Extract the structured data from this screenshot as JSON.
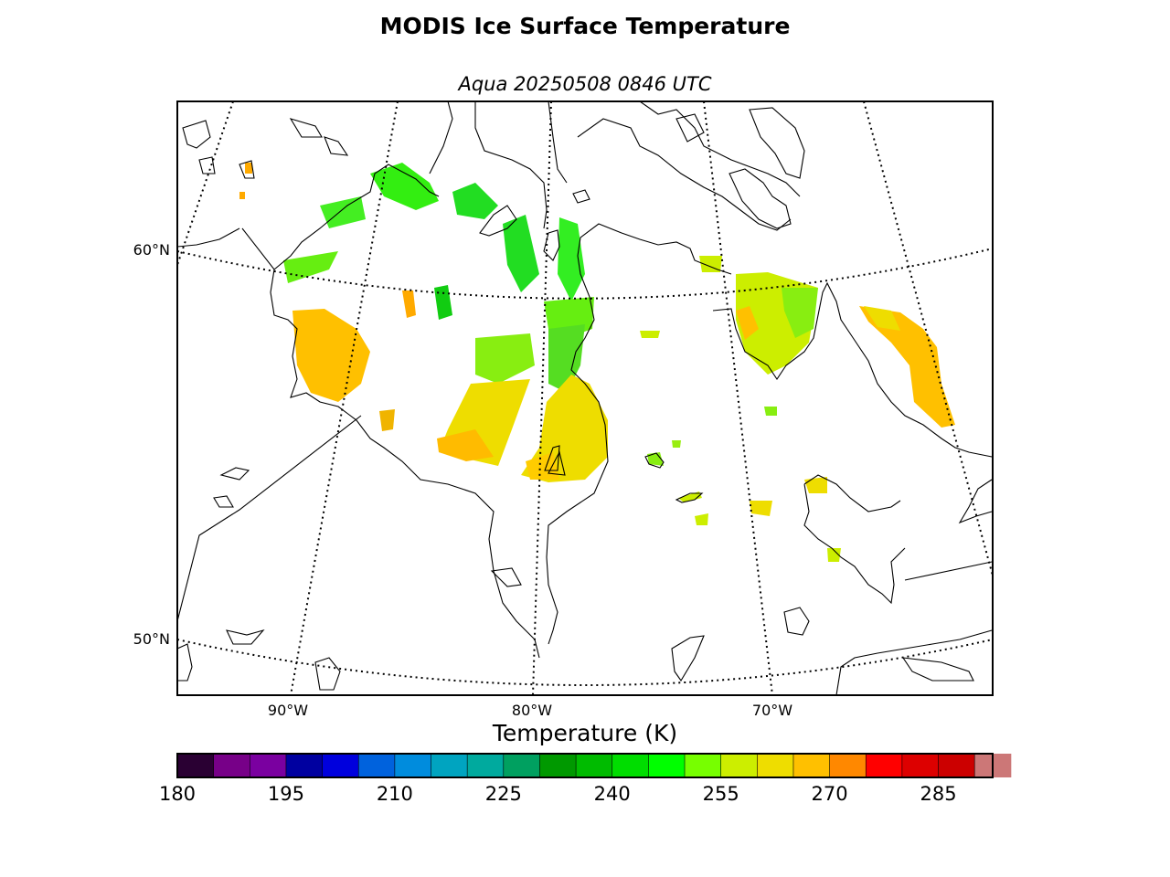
{
  "title": "MODIS Ice Surface Temperature",
  "subtitle": "Aqua 20250508 0846 UTC",
  "map": {
    "lat_labels": [
      "60°N",
      "50°N"
    ],
    "lon_labels": [
      "90°W",
      "80°W",
      "70°W"
    ],
    "coastline_color": "#000000",
    "graticule_style": "dotted"
  },
  "colorbar": {
    "label": "Temperature (K)",
    "min": 180,
    "max": 292.5,
    "step": 5,
    "tick_labels": [
      "180",
      "195",
      "210",
      "225",
      "240",
      "255",
      "270",
      "285"
    ],
    "colors": [
      "#2a0033",
      "#770088",
      "#7a00a0",
      "#0000a0",
      "#0000dd",
      "#0062dd",
      "#008cdd",
      "#00a4c0",
      "#00aa9e",
      "#00a060",
      "#009900",
      "#00bb00",
      "#00dd00",
      "#00ff00",
      "#77ff00",
      "#ccee00",
      "#eedd00",
      "#ffc000",
      "#ff8800",
      "#ff0000",
      "#dd0000",
      "#cc0000",
      "#cc7777"
    ]
  }
}
